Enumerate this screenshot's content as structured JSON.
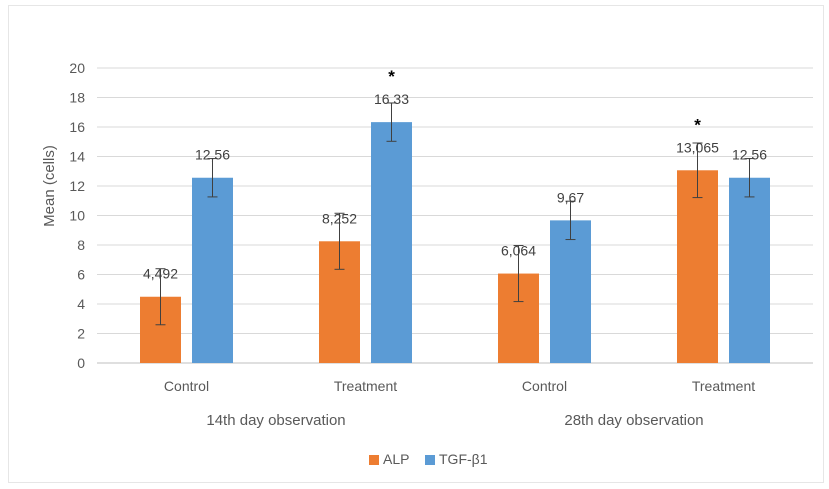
{
  "chart_data": {
    "type": "bar",
    "title": "",
    "ylabel": "Mean (cells)",
    "ylim": [
      0,
      20
    ],
    "yticks": [
      0,
      2,
      4,
      6,
      8,
      10,
      12,
      14,
      16,
      18,
      20
    ],
    "grid": true,
    "legend_position": "bottom",
    "groups": [
      {
        "label": "14th day observation",
        "categories": [
          "Control",
          "Treatment"
        ]
      },
      {
        "label": "28th day observation",
        "categories": [
          "Control",
          "Treatment"
        ]
      }
    ],
    "categories": [
      "Control",
      "Treatment",
      "Control",
      "Treatment"
    ],
    "series": [
      {
        "name": "ALP",
        "color": "#ED7D31",
        "values": [
          4.492,
          8.252,
          6.064,
          13.065
        ],
        "labels": [
          "4,492",
          "8,252",
          "6,064",
          "13,065"
        ],
        "error": [
          1.9,
          1.9,
          1.9,
          1.85
        ]
      },
      {
        "name": "TGF-β1",
        "color": "#5B9BD5",
        "values": [
          12.56,
          16.33,
          9.67,
          12.56
        ],
        "labels": [
          "12,56",
          "16,33",
          "9,67",
          "12,56"
        ],
        "error": [
          1.3,
          1.3,
          1.3,
          1.3
        ]
      }
    ],
    "significance": [
      {
        "category_index": 1,
        "series_index": 1,
        "mark": "*"
      },
      {
        "category_index": 3,
        "series_index": 0,
        "mark": "*"
      }
    ]
  }
}
